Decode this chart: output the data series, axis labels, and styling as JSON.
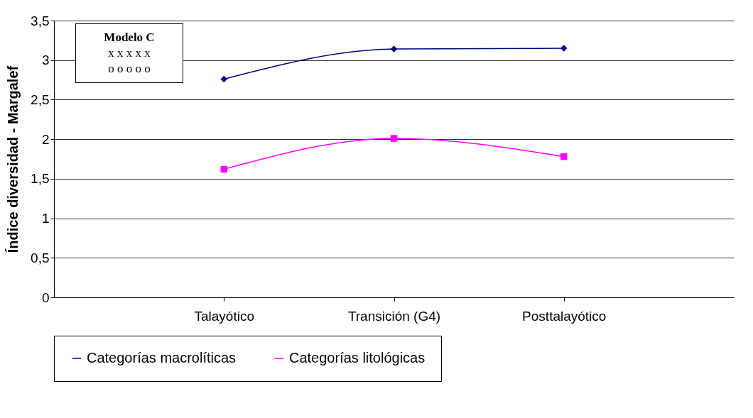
{
  "chart_data": {
    "type": "line",
    "ylabel": "Índice diversidad - Margalef",
    "categories": [
      "Talayótico",
      "Transición (G4)",
      "Posttalayótico"
    ],
    "series": [
      {
        "name": "Categorías macrolíticas",
        "color": "#000080",
        "marker": "diamond",
        "values": [
          2.76,
          3.14,
          3.15
        ]
      },
      {
        "name": "Categorías litológicas",
        "color": "#ff00ff",
        "marker": "square",
        "values": [
          1.62,
          2.01,
          1.78
        ]
      }
    ],
    "ylim": [
      0,
      3.5
    ],
    "yticks": [
      0,
      {
        "value": 0.5,
        "label": "0,5"
      },
      1,
      {
        "value": 1.5,
        "label": "1,5"
      },
      2,
      {
        "value": 2.5,
        "label": "2,5"
      },
      3,
      {
        "value": 3.5,
        "label": "3,5"
      }
    ],
    "grid": "y",
    "legend": "bottom",
    "line_style": "solid",
    "annotations": [
      "Modelo C",
      "x x x x x",
      "o o o o o"
    ]
  }
}
